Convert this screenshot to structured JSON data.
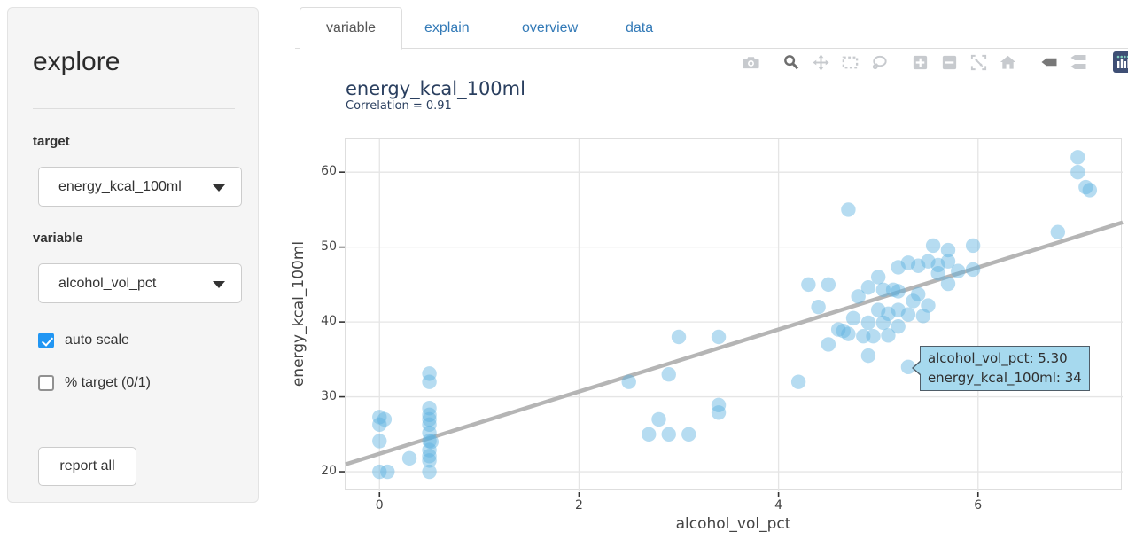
{
  "sidebar": {
    "title": "explore",
    "target_label": "target",
    "target_value": "energy_kcal_100ml",
    "variable_label": "variable",
    "variable_value": "alcohol_vol_pct",
    "auto_scale_label": "auto scale",
    "auto_scale_checked": true,
    "pct_target_label": "% target (0/1)",
    "pct_target_checked": false,
    "report_all_label": "report all"
  },
  "tabs": [
    {
      "label": "variable",
      "active": true
    },
    {
      "label": "explain",
      "active": false
    },
    {
      "label": "overview",
      "active": false
    },
    {
      "label": "data",
      "active": false
    }
  ],
  "modebar": {
    "icons": [
      "camera",
      "zoom",
      "pan",
      "box-select",
      "lasso-select",
      "zoom-in",
      "zoom-out",
      "autoscale",
      "reset-axes-home",
      "hover-closest",
      "hover-compare",
      "plotly-logo"
    ],
    "active_icons": [
      "zoom",
      "hover-closest"
    ],
    "icon_color": "#c7cace",
    "active_color": "#6e6e6e",
    "logo_color": "#3f4f75"
  },
  "chart_data": {
    "type": "scatter",
    "title": "energy_kcal_100ml",
    "subtitle": "Correlation = 0.91",
    "xlabel": "alcohol_vol_pct",
    "ylabel": "energy_kcal_100ml",
    "xlim": [
      -0.34,
      7.45
    ],
    "ylim": [
      17.4,
      64.4
    ],
    "x_ticks": [
      0,
      2,
      4,
      6
    ],
    "y_ticks": [
      20,
      30,
      40,
      50,
      60
    ],
    "grid": true,
    "gridline_color": "#e5e5e5",
    "marker_color": "#5db1df",
    "marker_opacity": 0.45,
    "marker_radius": 8.2,
    "trendline": {
      "x": [
        -0.34,
        7.45
      ],
      "y": [
        21.0,
        53.3
      ],
      "color": "#b5b5b5",
      "width": 4.5
    },
    "points": [
      [
        0,
        27.3
      ],
      [
        0.05,
        27.0
      ],
      [
        0,
        26.3
      ],
      [
        0,
        24.1
      ],
      [
        0,
        20
      ],
      [
        0.08,
        20
      ],
      [
        0.3,
        21.8
      ],
      [
        0.5,
        33.1
      ],
      [
        0.5,
        32
      ],
      [
        0.5,
        28.5
      ],
      [
        0.5,
        27.6
      ],
      [
        0.5,
        27
      ],
      [
        0.5,
        26.3
      ],
      [
        0.5,
        25.2
      ],
      [
        0.5,
        24.1
      ],
      [
        0.52,
        24.0
      ],
      [
        0.5,
        22.9
      ],
      [
        0.5,
        22.1
      ],
      [
        0.5,
        21.5
      ],
      [
        0.5,
        20
      ],
      [
        2.5,
        32
      ],
      [
        2.7,
        25
      ],
      [
        2.8,
        27
      ],
      [
        2.9,
        25
      ],
      [
        2.9,
        33
      ],
      [
        3.0,
        38
      ],
      [
        3.1,
        25
      ],
      [
        3.4,
        38
      ],
      [
        3.4,
        28.9
      ],
      [
        3.4,
        27.9
      ],
      [
        4.2,
        32
      ],
      [
        4.3,
        45
      ],
      [
        4.5,
        45
      ],
      [
        4.4,
        42
      ],
      [
        4.5,
        37
      ],
      [
        4.65,
        38.8
      ],
      [
        4.7,
        55
      ],
      [
        4.6,
        39
      ],
      [
        4.7,
        38.4
      ],
      [
        4.75,
        40.5
      ],
      [
        4.8,
        43.4
      ],
      [
        4.85,
        38.1
      ],
      [
        4.9,
        44.6
      ],
      [
        4.9,
        39.9
      ],
      [
        4.9,
        35.5
      ],
      [
        4.95,
        38.1
      ],
      [
        5.0,
        46
      ],
      [
        5.0,
        41.6
      ],
      [
        5.05,
        44.3
      ],
      [
        5.05,
        39.9
      ],
      [
        5.1,
        41.1
      ],
      [
        5.1,
        38.2
      ],
      [
        5.15,
        44.3
      ],
      [
        5.2,
        47.3
      ],
      [
        5.2,
        44.1
      ],
      [
        5.2,
        41.6
      ],
      [
        5.2,
        39.4
      ],
      [
        5.3,
        47.9
      ],
      [
        5.3,
        41
      ],
      [
        5.3,
        34
      ],
      [
        5.35,
        42.8
      ],
      [
        5.4,
        47.5
      ],
      [
        5.4,
        43.7
      ],
      [
        5.45,
        40.8
      ],
      [
        5.5,
        48.1
      ],
      [
        5.5,
        42.2
      ],
      [
        5.55,
        50.2
      ],
      [
        5.6,
        46.5
      ],
      [
        5.6,
        47.6
      ],
      [
        5.7,
        49.6
      ],
      [
        5.7,
        48.1
      ],
      [
        5.7,
        45.1
      ],
      [
        5.8,
        46.8
      ],
      [
        5.95,
        50.2
      ],
      [
        5.95,
        47
      ],
      [
        6.8,
        52
      ],
      [
        7.0,
        62
      ],
      [
        7.0,
        60
      ],
      [
        7.08,
        58
      ],
      [
        7.12,
        57.6
      ]
    ],
    "tooltip": {
      "point": [
        5.3,
        34
      ],
      "lines": [
        "alcohol_vol_pct: 5.30",
        "energy_kcal_100ml: 34"
      ]
    }
  }
}
